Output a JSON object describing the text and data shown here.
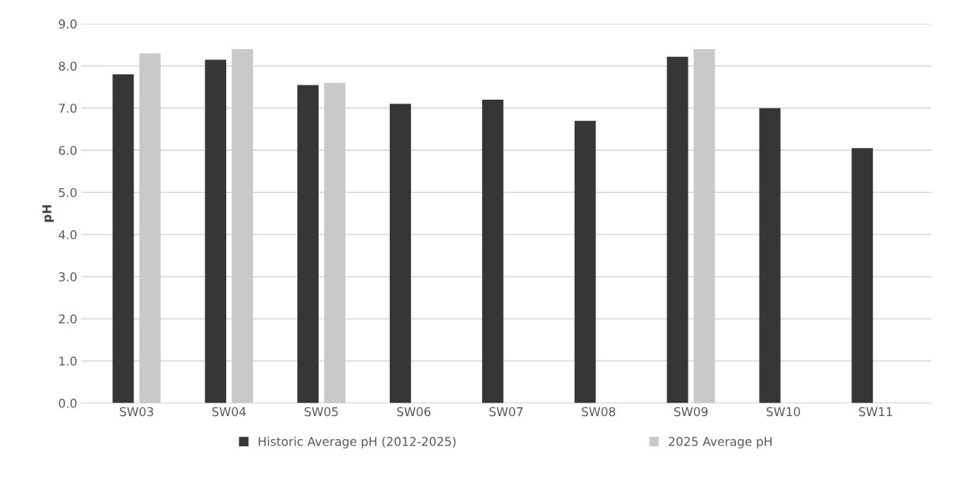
{
  "chart_data": {
    "type": "bar",
    "ylabel": "pH",
    "categories": [
      "SW03",
      "SW04",
      "SW05",
      "SW06",
      "SW07",
      "SW08",
      "SW09",
      "SW10",
      "SW11"
    ],
    "series": [
      {
        "name": "Historic Average pH (2012-2025)",
        "color": "#363636",
        "values": [
          7.8,
          8.15,
          7.55,
          7.1,
          7.2,
          6.7,
          8.22,
          7.0,
          6.05
        ]
      },
      {
        "name": "2025 Average pH",
        "color": "#c9c9c9",
        "values": [
          8.3,
          8.4,
          7.6,
          null,
          null,
          null,
          8.4,
          null,
          null
        ]
      }
    ],
    "ylim": [
      0,
      9
    ],
    "yticks": [
      {
        "value": 0,
        "label": "0.0"
      },
      {
        "value": 1,
        "label": "1.0"
      },
      {
        "value": 2,
        "label": "2.0"
      },
      {
        "value": 3,
        "label": "3.0"
      },
      {
        "value": 4,
        "label": "4.0"
      },
      {
        "value": 5,
        "label": "5.0"
      },
      {
        "value": 6,
        "label": "6.0"
      },
      {
        "value": 7,
        "label": "7.0"
      },
      {
        "value": 8,
        "label": "8.0"
      },
      {
        "value": 9,
        "label": "9.0"
      }
    ],
    "grid": "y",
    "legend": "bottom"
  }
}
